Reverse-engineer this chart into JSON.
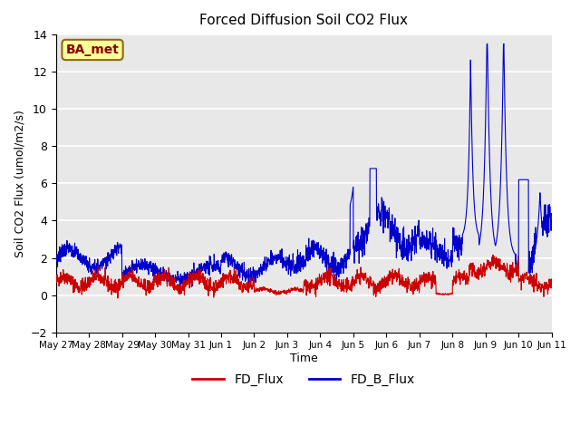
{
  "title": "Forced Diffusion Soil CO2 Flux",
  "ylabel": "Soil CO2 Flux (umol/m2/s)",
  "xlabel": "Time",
  "ylim": [
    -2,
    14
  ],
  "yticks": [
    -2,
    0,
    2,
    4,
    6,
    8,
    10,
    12,
    14
  ],
  "legend_labels": [
    "FD_Flux",
    "FD_B_Flux"
  ],
  "legend_colors": [
    "#cc0000",
    "#0000cc"
  ],
  "site_label": "BA_met",
  "bg_color": "#e8e8e8",
  "line_color_fd": "#cc0000",
  "line_color_fdb": "#0000cc",
  "xtick_labels": [
    "May 27",
    "May 28",
    "May 29",
    "May 30",
    "May 31",
    "Jun 1",
    "Jun 2",
    "Jun 3",
    "Jun 4",
    "Jun 5",
    "Jun 6",
    "Jun 7",
    "Jun 8",
    "Jun 9",
    "Jun 10",
    "Jun 11"
  ],
  "num_points": 2100
}
